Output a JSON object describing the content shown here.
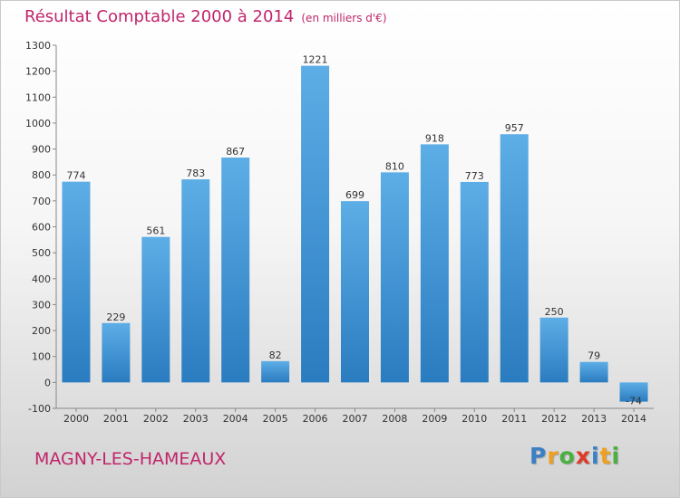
{
  "title": "Résultat Comptable 2000 à 2014",
  "subtitle": "(en milliers d'€)",
  "commune": "MAGNY-LES-HAMEAUX",
  "logo": {
    "letters": [
      "P",
      "r",
      "o",
      "x",
      "i",
      "t",
      "i"
    ],
    "colors": [
      "#3b7fc4",
      "#f0a020",
      "#4ab040",
      "#e03a2a",
      "#3b7fc4",
      "#f0a020",
      "#4ab040"
    ]
  },
  "colors": {
    "bar_top": "#5dade6",
    "bar_bottom": "#2a7cc0",
    "accent": "#c0256b"
  },
  "chart_data": {
    "type": "bar",
    "categories": [
      "2000",
      "2001",
      "2002",
      "2003",
      "2004",
      "2005",
      "2006",
      "2007",
      "2008",
      "2009",
      "2010",
      "2011",
      "2012",
      "2013",
      "2014"
    ],
    "values": [
      774,
      229,
      561,
      783,
      867,
      82,
      1221,
      699,
      810,
      918,
      773,
      957,
      250,
      79,
      -74
    ],
    "ylim": [
      -100,
      1300
    ],
    "yticks": [
      -100,
      0,
      100,
      200,
      300,
      400,
      500,
      600,
      700,
      800,
      900,
      1000,
      1100,
      1200,
      1300
    ],
    "grid": false
  }
}
